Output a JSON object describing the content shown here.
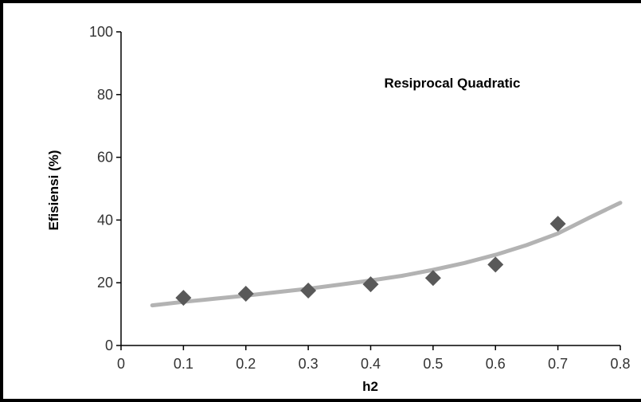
{
  "chart_data": {
    "type": "scatter",
    "title": "Resiprocal Quadratic",
    "xlabel": "h2",
    "ylabel": "Efisiensi (%)",
    "xlim": [
      0,
      0.8
    ],
    "ylim": [
      0,
      100
    ],
    "x_ticks": [
      "0",
      "0.1",
      "0.2",
      "0.3",
      "0.4",
      "0.5",
      "0.6",
      "0.7",
      "0.8"
    ],
    "y_ticks": [
      "0",
      "20",
      "40",
      "60",
      "80",
      "100"
    ],
    "grid": false,
    "legend": "none",
    "series": [
      {
        "type": "scatter",
        "marker": "diamond",
        "color": "#595959",
        "x": [
          0.1,
          0.2,
          0.3,
          0.4,
          0.5,
          0.6,
          0.7
        ],
        "y": [
          15.2,
          16.5,
          17.5,
          19.5,
          21.5,
          25.8,
          38.8
        ]
      },
      {
        "type": "line",
        "color": "#b3b3b3",
        "x": [
          0.05,
          0.1,
          0.15,
          0.2,
          0.25,
          0.3,
          0.35,
          0.4,
          0.45,
          0.5,
          0.55,
          0.6,
          0.65,
          0.7,
          0.75,
          0.8
        ],
        "y": [
          12.8,
          13.9,
          14.9,
          15.9,
          17.0,
          18.1,
          19.4,
          20.7,
          22.2,
          24.1,
          26.3,
          28.9,
          32.0,
          35.7,
          40.7,
          45.5
        ]
      }
    ]
  }
}
